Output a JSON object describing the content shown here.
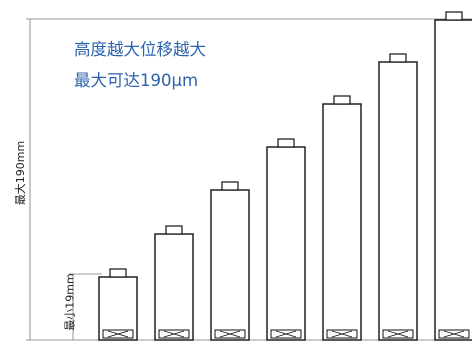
{
  "caption": {
    "line1": "高度越大位移越大",
    "line2": "最大可达190μm"
  },
  "dimension_labels": {
    "max": "最大190mm",
    "min": "最小19mm"
  },
  "stack_heights_relative": [
    0.27,
    0.42,
    0.58,
    0.72,
    0.87,
    1.0,
    1.0
  ]
}
